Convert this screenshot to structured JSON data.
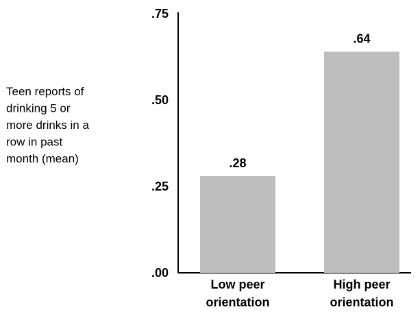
{
  "chart_data": {
    "type": "bar",
    "title": "",
    "xlabel": "",
    "ylabel_lines": [
      "Teen reports of",
      "drinking 5 or",
      "more drinks in a",
      "row in past",
      "month (mean)"
    ],
    "categories": [
      [
        "Low peer",
        "orientation"
      ],
      [
        "High peer",
        "orientation"
      ]
    ],
    "values": [
      0.28,
      0.64
    ],
    "value_labels": [
      ".28",
      ".64"
    ],
    "ylim": [
      0,
      0.75
    ],
    "ticks": [
      {
        "value": 0.0,
        "label": ".00"
      },
      {
        "value": 0.25,
        "label": ".25"
      },
      {
        "value": 0.5,
        "label": ".50"
      },
      {
        "value": 0.75,
        "label": ".75"
      }
    ],
    "grid": false,
    "legend": "none",
    "bar_color": "#bebebe",
    "axis_color": "#000000"
  }
}
